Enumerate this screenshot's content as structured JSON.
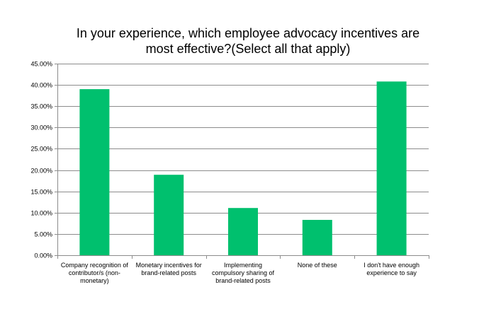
{
  "chart_data": {
    "type": "bar",
    "title_lines": [
      "In your experience, which employee advocacy incentives are",
      "most effective?(Select all that apply)"
    ],
    "categories": [
      [
        "Company recognition of",
        "contributor/s (non-",
        "monetary)"
      ],
      [
        "Monetary incentives for",
        "brand-related posts"
      ],
      [
        "Implementing",
        "compulsory sharing of",
        "brand-related posts"
      ],
      [
        "None of these"
      ],
      [
        "I don't have enough",
        "experience to say"
      ]
    ],
    "values": [
      39.0,
      18.9,
      11.1,
      8.3,
      40.8
    ],
    "ylim": [
      0,
      45
    ],
    "ytick_step": 5,
    "ytick_labels": [
      "0.00%",
      "5.00%",
      "10.00%",
      "15.00%",
      "20.00%",
      "25.00%",
      "30.00%",
      "35.00%",
      "40.00%",
      "45.00%"
    ],
    "xlabel": "",
    "ylabel": "",
    "grid": true,
    "bar_color": "#00c06e"
  }
}
